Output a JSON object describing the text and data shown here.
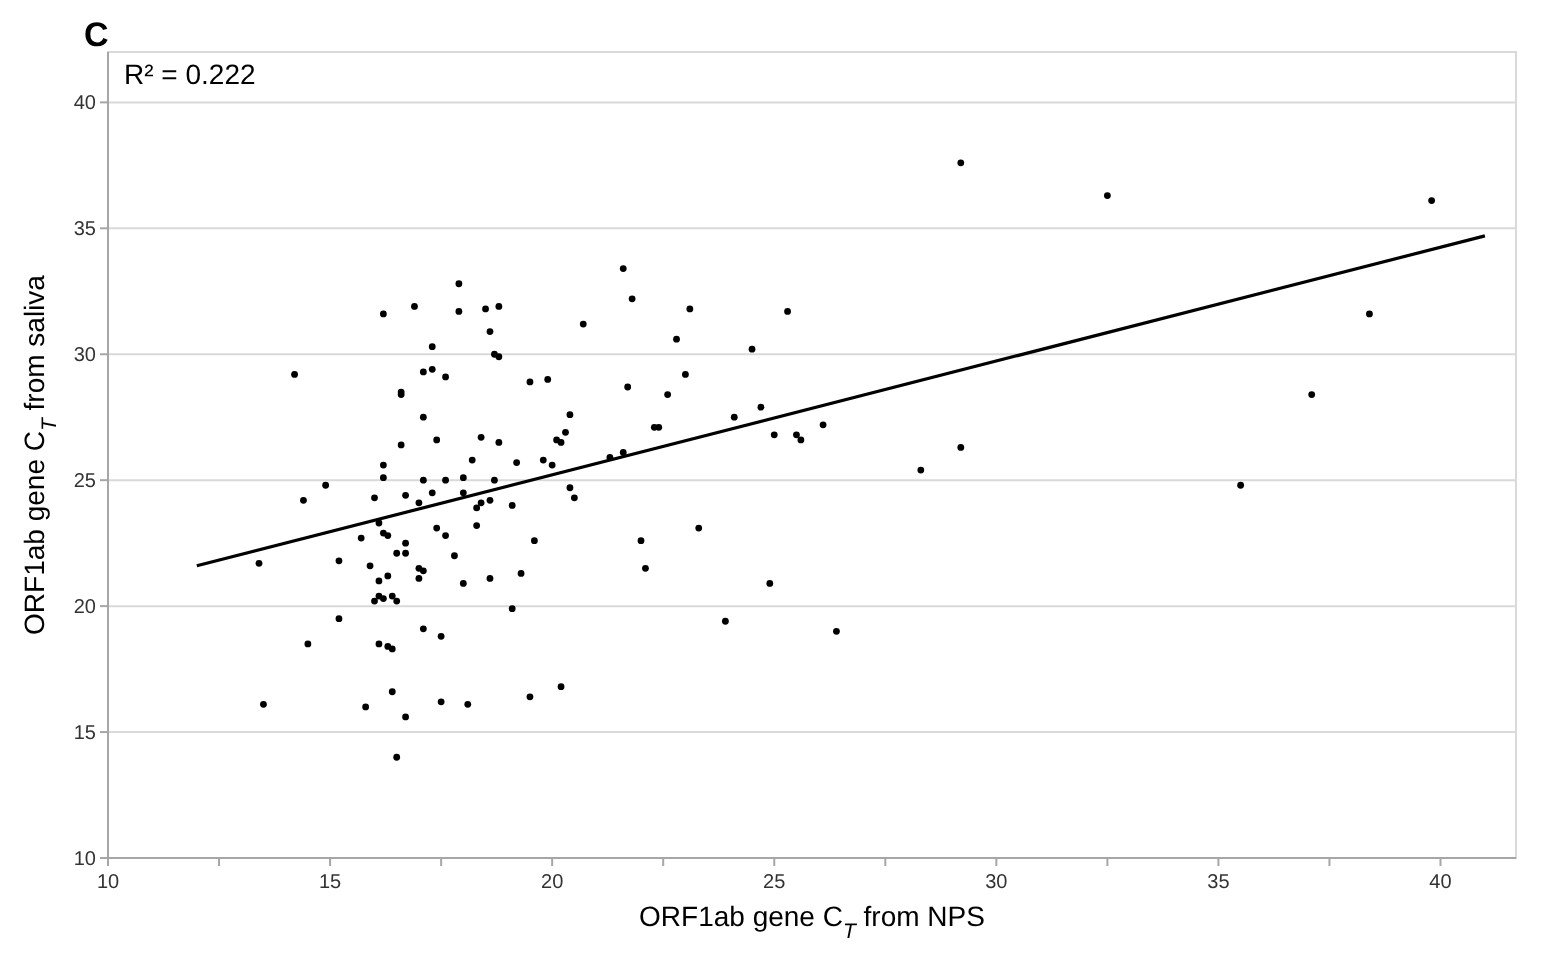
{
  "chart_data": {
    "type": "scatter",
    "title": "C",
    "xlabel": "ORF1ab gene C$_{T}$ from NPS",
    "ylabel": "ORF1ab gene C$_{T}$ from saliva",
    "annotations": [
      "R² = 0.222"
    ],
    "xlim": [
      10,
      41.7
    ],
    "ylim": [
      10,
      42
    ],
    "xticks": [
      10,
      {
        "value": 12.5,
        "label": null
      },
      15,
      {
        "value": 17.5,
        "label": null
      },
      20,
      {
        "value": 22.5,
        "label": null
      },
      25,
      {
        "value": 27.5,
        "label": null
      },
      30,
      {
        "value": 32.5,
        "label": null
      },
      35,
      {
        "value": 37.5,
        "label": null
      },
      40
    ],
    "yticks": [
      10,
      15,
      20,
      25,
      30,
      35,
      40
    ],
    "grid": "y",
    "marker": "circle",
    "series": [
      {
        "color": "#000000",
        "x": [
          17.9,
          16.9,
          16.2,
          17.9,
          18.5,
          18.8,
          18.6,
          17.3,
          18.7,
          18.8,
          14.2,
          17.1,
          17.3,
          17.6,
          19.5,
          19.9,
          16.6,
          16.6,
          17.1,
          16.6,
          17.4,
          18.4,
          18.8,
          20.1,
          20.2,
          18.2,
          19.2,
          19.8,
          20.0,
          16.2,
          16.2,
          14.9,
          17.1,
          17.6,
          18.0,
          18.7,
          14.4,
          16.0,
          16.7,
          17.3,
          18.0,
          17.0,
          18.4,
          18.6,
          19.1,
          18.3,
          16.1,
          17.4,
          18.3,
          15.7,
          16.2,
          16.3,
          17.6,
          16.7,
          19.6,
          16.5,
          16.7,
          17.8,
          15.2,
          13.4,
          15.9,
          17.0,
          17.1,
          19.3,
          16.3,
          17.0,
          16.1,
          18.6,
          18.0,
          16.1,
          16.2,
          16.4,
          16.0,
          16.5,
          19.1,
          15.2,
          17.1,
          17.5,
          14.5,
          16.1,
          16.3,
          16.4,
          16.4,
          19.5,
          13.5,
          15.8,
          17.5,
          18.1,
          16.7,
          20.2,
          16.5,
          21.6,
          21.8,
          20.7,
          23.1,
          25.3,
          22.8,
          24.5,
          21.7,
          23.0,
          22.6,
          20.4,
          20.3,
          22.3,
          22.4,
          24.1,
          24.7,
          25.0,
          25.5,
          25.6,
          26.1,
          21.3,
          21.6,
          20.4,
          20.5,
          22.0,
          23.3,
          22.1,
          24.9,
          23.9,
          26.4,
          29.2,
          32.5,
          39.8,
          38.4,
          37.1,
          29.2,
          28.3,
          35.5
        ],
        "values": [
          32.8,
          31.9,
          31.6,
          31.7,
          31.8,
          31.9,
          30.9,
          30.3,
          30.0,
          29.9,
          29.2,
          29.3,
          29.4,
          29.1,
          28.9,
          29.0,
          28.5,
          28.4,
          27.5,
          26.4,
          26.6,
          26.7,
          26.5,
          26.6,
          26.5,
          25.8,
          25.7,
          25.8,
          25.6,
          25.6,
          25.1,
          24.8,
          25.0,
          25.0,
          25.1,
          25.0,
          24.2,
          24.3,
          24.4,
          24.5,
          24.5,
          24.1,
          24.1,
          24.2,
          24.0,
          23.9,
          23.3,
          23.1,
          23.2,
          22.7,
          22.9,
          22.8,
          22.8,
          22.5,
          22.6,
          22.1,
          22.1,
          22.0,
          21.8,
          21.7,
          21.6,
          21.5,
          21.4,
          21.3,
          21.2,
          21.1,
          21.0,
          21.1,
          20.9,
          20.4,
          20.3,
          20.4,
          20.2,
          20.2,
          19.9,
          19.5,
          19.1,
          18.8,
          18.5,
          18.5,
          18.4,
          18.3,
          16.6,
          16.4,
          16.1,
          16.0,
          16.2,
          16.1,
          15.6,
          16.8,
          14.0,
          33.4,
          32.2,
          31.2,
          31.8,
          31.7,
          30.6,
          30.2,
          28.7,
          29.2,
          28.4,
          27.6,
          26.9,
          27.1,
          27.1,
          27.5,
          27.9,
          26.8,
          26.8,
          26.6,
          27.2,
          25.9,
          26.1,
          24.7,
          24.3,
          22.6,
          23.1,
          21.5,
          20.9,
          19.4,
          19.0,
          37.6,
          36.3,
          36.1,
          31.6,
          28.4,
          26.3,
          25.4,
          24.8
        ]
      },
      {
        "type": "line",
        "color": "#000000",
        "x": [
          12,
          41
        ],
        "values": [
          21.6,
          34.7
        ],
        "marker": "none",
        "line_style": "solid"
      }
    ]
  }
}
